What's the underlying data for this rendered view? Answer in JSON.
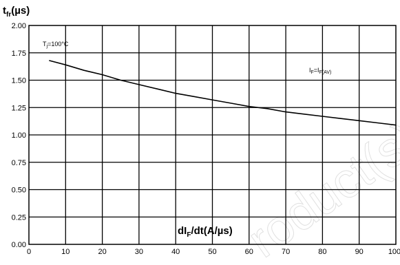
{
  "chart_data": {
    "type": "line",
    "ylabel": {
      "base": "t",
      "sub": "fr",
      "unit": "(µs)"
    },
    "xlabel": {
      "base": "dI",
      "sub": "F",
      "rest": "/dt(A/µs)"
    },
    "xlim": [
      0,
      100
    ],
    "ylim": [
      0,
      2.0
    ],
    "x_ticks": [
      0,
      10,
      20,
      30,
      40,
      50,
      60,
      70,
      80,
      90,
      100
    ],
    "y_ticks": [
      "0.00",
      "0.25",
      "0.50",
      "0.75",
      "1.00",
      "1.25",
      "1.50",
      "1.75",
      "2.00"
    ],
    "grid": true,
    "annotations": {
      "temperature": {
        "base": "T",
        "sub": "j",
        "rest": "=100°C"
      },
      "condition": {
        "base": "I",
        "sub1": "F",
        "mid": "=I",
        "sub2": "F(AV)"
      }
    },
    "series": [
      {
        "x": [
          5.5,
          10,
          15,
          20,
          25,
          30,
          35,
          40,
          45,
          50,
          55,
          60,
          65,
          70,
          75,
          80,
          85,
          90,
          95,
          100
        ],
        "values": [
          1.68,
          1.64,
          1.59,
          1.55,
          1.5,
          1.46,
          1.42,
          1.38,
          1.35,
          1.32,
          1.29,
          1.26,
          1.24,
          1.21,
          1.19,
          1.17,
          1.15,
          1.13,
          1.11,
          1.09
        ]
      }
    ]
  },
  "watermark": "roduct(s) -",
  "colors": {
    "line": "#000000",
    "grid": "#000000",
    "watermark": "#cccccc"
  }
}
